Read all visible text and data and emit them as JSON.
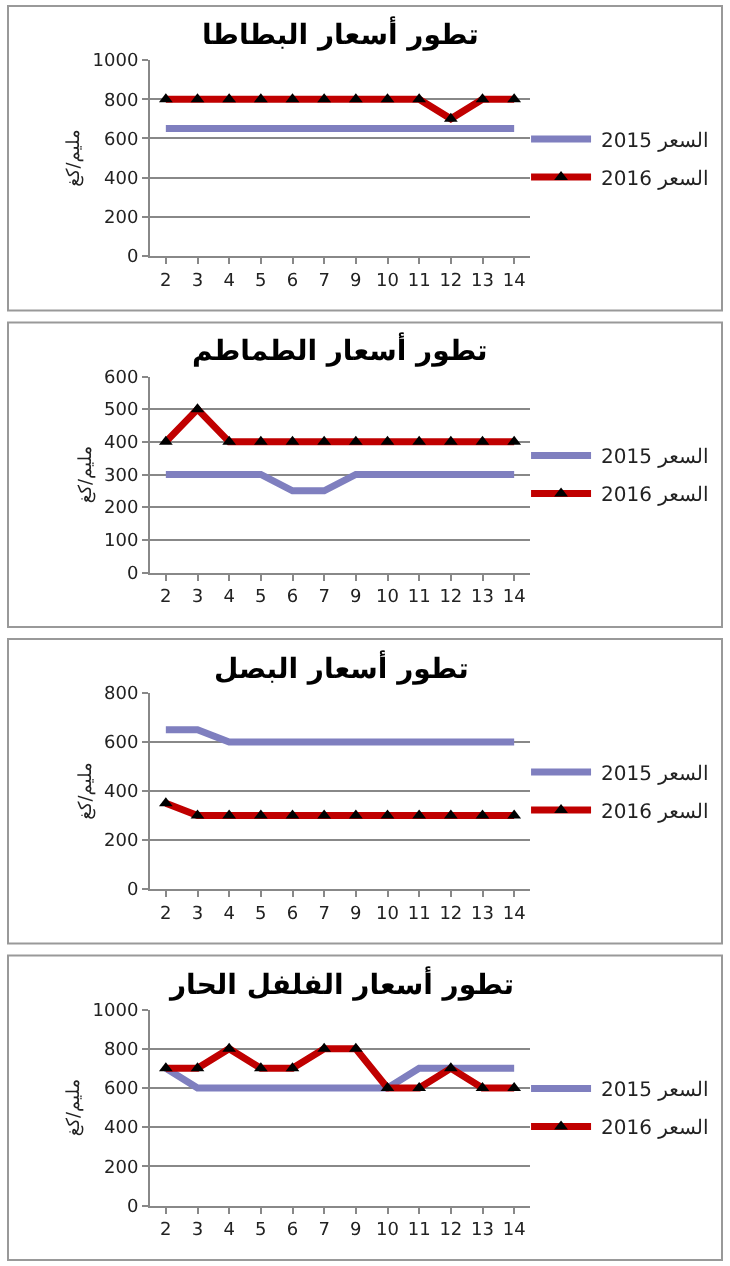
{
  "chart_data": [
    {
      "type": "line",
      "title": "تطور أسعار البطاطا",
      "ylabel": "مليم/كغ",
      "categories": [
        "2",
        "3",
        "4",
        "5",
        "6",
        "7",
        "9",
        "10",
        "11",
        "12",
        "13",
        "14"
      ],
      "ylim": [
        0,
        1000
      ],
      "yticks": [
        0,
        200,
        400,
        600,
        800,
        1000
      ],
      "grid": "y",
      "legend": "right",
      "series": [
        {
          "name": "السعر 2015",
          "color": "#7f7fbf",
          "marker": "none",
          "values": [
            650,
            650,
            650,
            650,
            650,
            650,
            650,
            650,
            650,
            650,
            650,
            650
          ]
        },
        {
          "name": "السعر 2016",
          "color": "#c00000",
          "marker": "triangle",
          "values": [
            800,
            800,
            800,
            800,
            800,
            800,
            800,
            800,
            800,
            700,
            800,
            800
          ]
        }
      ]
    },
    {
      "type": "line",
      "title": "تطور أسعار الطماطم",
      "ylabel": "مليم/كغ",
      "categories": [
        "2",
        "3",
        "4",
        "5",
        "6",
        "7",
        "9",
        "10",
        "11",
        "12",
        "13",
        "14"
      ],
      "ylim": [
        0,
        600
      ],
      "yticks": [
        0,
        100,
        200,
        300,
        400,
        500,
        600
      ],
      "grid": "y",
      "legend": "right",
      "series": [
        {
          "name": "السعر 2015",
          "color": "#7f7fbf",
          "marker": "none",
          "values": [
            300,
            300,
            300,
            300,
            250,
            250,
            300,
            300,
            300,
            300,
            300,
            300
          ]
        },
        {
          "name": "السعر 2016",
          "color": "#c00000",
          "marker": "triangle",
          "values": [
            400,
            500,
            400,
            400,
            400,
            400,
            400,
            400,
            400,
            400,
            400,
            400
          ]
        }
      ]
    },
    {
      "type": "line",
      "title": "تطور أسعار البصل",
      "ylabel": "مليم/كغ",
      "categories": [
        "2",
        "3",
        "4",
        "5",
        "6",
        "7",
        "9",
        "10",
        "11",
        "12",
        "13",
        "14"
      ],
      "ylim": [
        0,
        800
      ],
      "yticks": [
        0,
        200,
        400,
        600,
        800
      ],
      "grid": "y",
      "legend": "right",
      "series": [
        {
          "name": "السعر 2015",
          "color": "#7f7fbf",
          "marker": "none",
          "values": [
            650,
            650,
            600,
            600,
            600,
            600,
            600,
            600,
            600,
            600,
            600,
            600
          ]
        },
        {
          "name": "السعر 2016",
          "color": "#c00000",
          "marker": "triangle",
          "values": [
            350,
            300,
            300,
            300,
            300,
            300,
            300,
            300,
            300,
            300,
            300,
            300
          ]
        }
      ]
    },
    {
      "type": "line",
      "title": "تطور أسعار الفلفل الحار",
      "ylabel": "مليم/كغ",
      "categories": [
        "2",
        "3",
        "4",
        "5",
        "6",
        "7",
        "9",
        "10",
        "11",
        "12",
        "13",
        "14"
      ],
      "ylim": [
        0,
        1000
      ],
      "yticks": [
        0,
        200,
        400,
        600,
        800,
        1000
      ],
      "grid": "y",
      "legend": "right",
      "series": [
        {
          "name": "السعر 2015",
          "color": "#7f7fbf",
          "marker": "none",
          "values": [
            700,
            600,
            600,
            600,
            600,
            600,
            600,
            600,
            700,
            700,
            700,
            700
          ]
        },
        {
          "name": "السعر 2016",
          "color": "#c00000",
          "marker": "triangle",
          "values": [
            700,
            700,
            800,
            700,
            700,
            800,
            800,
            600,
            600,
            700,
            600,
            600
          ]
        }
      ]
    }
  ]
}
